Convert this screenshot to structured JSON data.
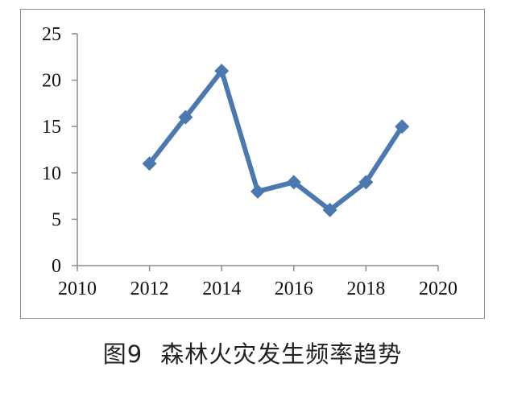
{
  "caption": {
    "figure_label": "图9",
    "title": "森林火灾发生频率趋势"
  },
  "colors": {
    "series": "#4A78AF",
    "axis": "#8c8c8c",
    "text": "#111111"
  },
  "chart_data": {
    "type": "line",
    "title": "",
    "xlabel": "",
    "ylabel": "",
    "xlim": [
      2010,
      2020
    ],
    "ylim": [
      0,
      25
    ],
    "x_ticks": [
      2010,
      2012,
      2014,
      2016,
      2018,
      2020
    ],
    "y_ticks": [
      0,
      5,
      10,
      15,
      20,
      25
    ],
    "x_tick_labels": [
      "2010",
      "2012",
      "2014",
      "2016",
      "2018",
      "2020"
    ],
    "y_tick_labels": [
      "0",
      "5",
      "10",
      "15",
      "20",
      "25"
    ],
    "grid": false,
    "legend": "none",
    "marker": "diamond",
    "series": [
      {
        "x": [
          2012,
          2013,
          2014,
          2015,
          2016,
          2017,
          2018,
          2019
        ],
        "y": [
          11,
          16,
          21,
          8,
          9,
          6,
          9,
          15
        ]
      }
    ]
  }
}
